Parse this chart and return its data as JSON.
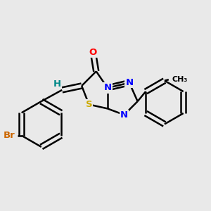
{
  "bg_color": "#e9e9e9",
  "atom_colors": {
    "N": "#0000ff",
    "O": "#ff0000",
    "S": "#ccaa00",
    "Br": "#cc6600",
    "C": "#000000",
    "H": "#008888"
  },
  "bond_color": "#000000",
  "bond_lw": 1.8,
  "dbl_sep": 0.12
}
